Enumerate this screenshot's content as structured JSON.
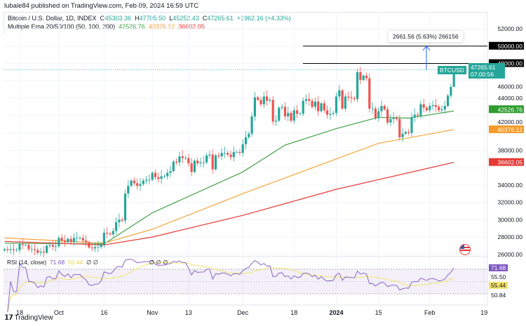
{
  "header": {
    "published": "lubale84 published on TradingView.com, Feb 09, 2024 16:59 UTC",
    "symbol_line": "Bitcoin / U.S. Dollar, 1D, INDEX",
    "o_label": "O",
    "o": "45303.36",
    "h_label": "H",
    "h": "47705.50",
    "l_label": "L",
    "l": "45252.43",
    "c_label": "C",
    "c": "47265.61",
    "change": "+1962.16 (+4.33%)",
    "ema_line": "Multiple Ema 20/50/100 (50, 100, 200)",
    "ema1": "42526.76",
    "ema2": "40376.12",
    "ema3": "36602.05"
  },
  "colors": {
    "up": "#26a69a",
    "down": "#ef5350",
    "ema50": "#43a047",
    "ema100": "#f5a53b",
    "ema200": "#e53935",
    "rsi": "#7e57c2",
    "rsi_ma": "#f4e36c",
    "measure": "#2962ff"
  },
  "measure": {
    "label": "2661.56 (5.63%) 266156",
    "icon": "arrow-up-icon"
  },
  "price_axis": {
    "ticks": [
      "52000.00",
      "46000.00",
      "44000.00",
      "42000.00",
      "38000.00",
      "34000.00",
      "32000.00",
      "30000.00",
      "28000.00",
      "26000.00"
    ],
    "level_50000": "50000.00",
    "level_48000": "48000.00",
    "symbol_tag": "BTCUSD",
    "last_price": "47265.61",
    "countdown": "07:00:56",
    "ema1_tag": "42526.76",
    "ema2_tag": "40376.12",
    "ema3_tag": "36602.05"
  },
  "rsi": {
    "label": "RSI (14, close)",
    "value": "71.68",
    "ma": "55.44",
    "empties": "∅ ∅",
    "empties2": "∅ ∅ ∅",
    "axis": [
      "71.68",
      "55.50",
      "55.44",
      "50.84"
    ]
  },
  "footer": {
    "brand": "TradingView"
  },
  "chart_data": {
    "type": "candlestick",
    "start_date": "2023-09-13",
    "interval": "1D",
    "ylim": [
      26000,
      52000
    ],
    "grid": true,
    "closes": [
      26600,
      26500,
      26600,
      26500,
      26500,
      27200,
      27100,
      27100,
      26600,
      26600,
      26500,
      26200,
      26300,
      26200,
      27000,
      27100,
      26900,
      26950,
      27900,
      27600,
      27400,
      27800,
      27400,
      27900,
      27900,
      27900,
      27600,
      27400,
      26800,
      26700,
      26850,
      26850,
      27150,
      28500,
      28400,
      28300,
      28700,
      29700,
      30000,
      29900,
      33000,
      33900,
      34500,
      34200,
      33900,
      34100,
      34500,
      34600,
      34600,
      35400,
      34900,
      34700,
      35000,
      35000,
      35400,
      35600,
      36700,
      36600,
      37300,
      37100,
      37100,
      36500,
      35500,
      36800,
      36500,
      36600,
      36600,
      37400,
      37500,
      35800,
      37400,
      37300,
      37700,
      37700,
      37500,
      37200,
      37800,
      37800,
      37700,
      38700,
      39500,
      39900,
      41900,
      44100,
      43800,
      43300,
      44200,
      43700,
      43800,
      41300,
      41400,
      42900,
      43000,
      41900,
      42300,
      41400,
      42600,
      42200,
      42200,
      43700,
      43900,
      43700,
      43000,
      43600,
      42500,
      43400,
      42600,
      42100,
      42200,
      42300,
      44200,
      44900,
      42800,
      44200,
      44100,
      44000,
      43900,
      47000,
      46100,
      46600,
      46300,
      42800,
      42800,
      41700,
      42500,
      43100,
      42700,
      41200,
      41600,
      41700,
      41600,
      39500,
      39900,
      40100,
      40000,
      41800,
      42100,
      42000,
      43300,
      42900,
      42600,
      43100,
      43200,
      43000,
      42600,
      42700,
      43100,
      44300,
      45300,
      47265.61
    ],
    "last_bar": {
      "open": 45303.36,
      "high": 47705.5,
      "low": 45252.43,
      "close": 47265.61
    },
    "ema_series": [
      {
        "name": "EMA 50",
        "points": [
          [
            "2023-09-13",
            27300
          ],
          [
            "2023-10-16",
            27200
          ],
          [
            "2023-11-01",
            30800
          ],
          [
            "2023-12-01",
            35500
          ],
          [
            "2023-12-15",
            38600
          ],
          [
            "2024-01-01",
            40500
          ],
          [
            "2024-01-15",
            41800
          ],
          [
            "2024-01-25",
            41700
          ],
          [
            "2024-02-09",
            42526.76
          ]
        ]
      },
      {
        "name": "EMA 100",
        "points": [
          [
            "2023-09-13",
            27900
          ],
          [
            "2023-10-16",
            27300
          ],
          [
            "2023-11-01",
            28900
          ],
          [
            "2023-12-01",
            33000
          ],
          [
            "2024-01-01",
            37000
          ],
          [
            "2024-01-15",
            38800
          ],
          [
            "2024-02-09",
            40376.12
          ]
        ]
      },
      {
        "name": "EMA 200",
        "points": [
          [
            "2023-09-13",
            27500
          ],
          [
            "2023-10-16",
            27100
          ],
          [
            "2023-11-01",
            28000
          ],
          [
            "2023-12-01",
            30500
          ],
          [
            "2024-01-01",
            33500
          ],
          [
            "2024-02-09",
            36602.05
          ]
        ]
      }
    ],
    "horizontal_levels": [
      50000,
      48000
    ],
    "x_ticks": [
      [
        "2023-09-18",
        "18"
      ],
      [
        "2023-10-01",
        "Oct"
      ],
      [
        "2023-10-16",
        "16"
      ],
      [
        "2023-11-01",
        "Nov"
      ],
      [
        "2023-11-13",
        "13"
      ],
      [
        "2023-12-01",
        "Dec"
      ],
      [
        "2023-12-18",
        "18"
      ],
      [
        "2024-01-01",
        "2024"
      ],
      [
        "2024-01-15",
        "15"
      ],
      [
        "2024-02-01",
        "Feb"
      ],
      [
        "2024-02-19",
        "19"
      ]
    ]
  }
}
